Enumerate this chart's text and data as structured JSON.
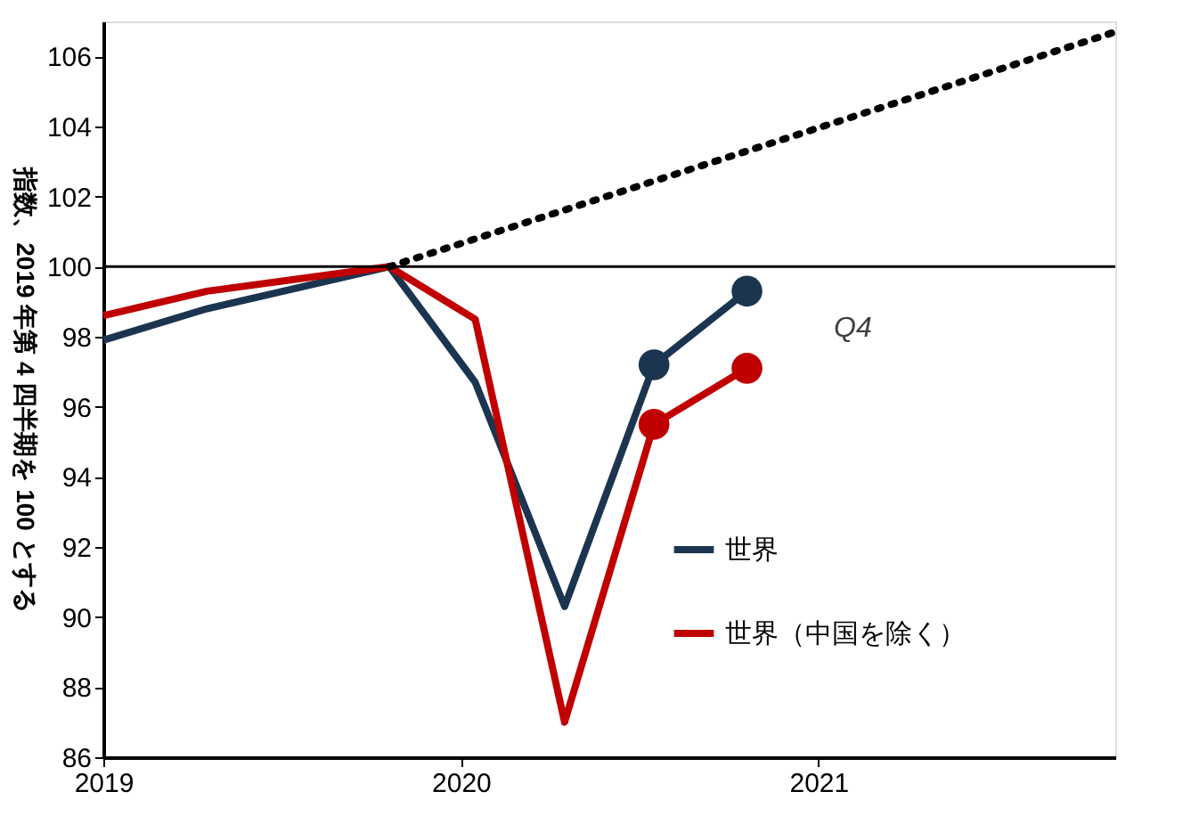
{
  "chart_data": {
    "type": "line",
    "ylabel": "指数、2019 年第 4 四半期を 100 とする",
    "xlim": [
      2019,
      2021.83
    ],
    "xticks": [
      2019,
      2020,
      2021
    ],
    "ylim": [
      86,
      107
    ],
    "yticks": [
      86,
      88,
      90,
      92,
      94,
      96,
      98,
      100,
      102,
      104,
      106
    ],
    "series": [
      {
        "name": "世界",
        "color": "#1b3550",
        "x": [
          2019.0,
          2019.29,
          2019.8,
          2020.04,
          2020.29,
          2020.54,
          2020.8
        ],
        "values": [
          97.9,
          98.8,
          100,
          96.7,
          90.3,
          97.2,
          99.3
        ]
      },
      {
        "name": "世界（中国を除く）",
        "color": "#c00000",
        "x": [
          2019.0,
          2019.29,
          2019.8,
          2020.04,
          2020.29,
          2020.54,
          2020.8
        ],
        "values": [
          98.6,
          99.3,
          100,
          98.5,
          87.0,
          95.5,
          97.1
        ]
      },
      {
        "type": "line",
        "line_style": "dotted",
        "color": "#000000",
        "x": [
          2019.8,
          2021.83
        ],
        "values": [
          100,
          106.7
        ]
      },
      {
        "type": "scatter",
        "color": "#1b3550",
        "x": [
          2020.54,
          2020.8
        ],
        "values": [
          97.2,
          99.3
        ]
      },
      {
        "type": "scatter",
        "color": "#c00000",
        "x": [
          2020.54,
          2020.8
        ],
        "values": [
          95.5,
          97.1
        ]
      }
    ],
    "ref_lines": [
      {
        "axis": "y",
        "value": 100,
        "color": "#000000"
      }
    ],
    "annotations": [
      "Q4"
    ],
    "legend": "bottom right",
    "grid": false
  }
}
